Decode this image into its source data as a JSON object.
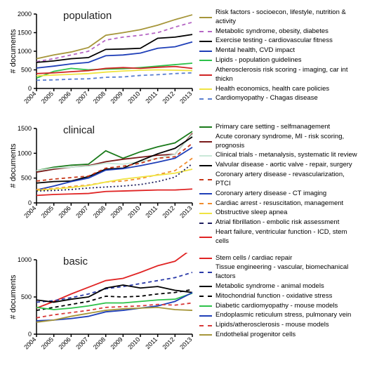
{
  "years": [
    "2004",
    "2005",
    "2006",
    "2007",
    "2008",
    "2009",
    "2010",
    "2011",
    "2012",
    "2013"
  ],
  "axis": {
    "ylabel": "# documents",
    "label_fontsize": 11,
    "tick_fontsize": 9,
    "grid_color": "#cccccc",
    "axis_color": "#000000",
    "background_color": "#ffffff"
  },
  "panels": [
    {
      "title": "population",
      "ylim": [
        0,
        2000
      ],
      "ytick_step": 500,
      "yticks": [
        0,
        500,
        1000,
        1500,
        2000
      ],
      "height": 150,
      "series": [
        {
          "label": "Risk factors - socioecon, lifestyle, nutrition & activity",
          "color": "#a6963a",
          "dash": "",
          "values": [
            800,
            900,
            980,
            1100,
            1430,
            1500,
            1580,
            1700,
            1850,
            1980
          ]
        },
        {
          "label": "Metabolic syndrome, obesity, diabetes",
          "color": "#b566c4",
          "dash": "5,4",
          "values": [
            720,
            800,
            900,
            1000,
            1300,
            1380,
            1430,
            1500,
            1650,
            1780
          ]
        },
        {
          "label": "Exercise testing - cardiovascular fitness",
          "color": "#000000",
          "dash": "",
          "values": [
            700,
            740,
            800,
            830,
            1050,
            1060,
            1080,
            1350,
            1380,
            1450
          ]
        },
        {
          "label": "Mental health, CVD impact",
          "color": "#1f3fb8",
          "dash": "",
          "values": [
            550,
            600,
            660,
            700,
            880,
            900,
            950,
            1080,
            1120,
            1250
          ]
        },
        {
          "label": "Lipids - population guidelines",
          "color": "#2dc24a",
          "dash": "",
          "values": [
            280,
            460,
            540,
            500,
            520,
            530,
            560,
            600,
            640,
            680
          ]
        },
        {
          "label": "Atherosclerosis risk scoring - imaging, car int thickn",
          "color": "#d02424",
          "dash": "",
          "values": [
            400,
            420,
            450,
            480,
            540,
            560,
            540,
            570,
            590,
            540
          ]
        },
        {
          "label": "Health economics, health care policies",
          "color": "#f0e442",
          "dash": "",
          "values": [
            340,
            360,
            380,
            400,
            440,
            470,
            490,
            500,
            490,
            480
          ]
        },
        {
          "label": "Cardiomyopathy - Chagas disease",
          "color": "#5a7fd0",
          "dash": "5,4",
          "values": [
            220,
            230,
            250,
            260,
            300,
            310,
            350,
            370,
            400,
            420
          ]
        }
      ]
    },
    {
      "title": "clinical",
      "ylim": [
        0,
        1500
      ],
      "ytick_step": 500,
      "yticks": [
        0,
        500,
        1000,
        1500
      ],
      "height": 150,
      "series": [
        {
          "label": "Primary care setting - selfmanagement",
          "color": "#1a7a1a",
          "dash": "",
          "values": [
            650,
            720,
            760,
            780,
            1050,
            900,
            1030,
            1130,
            1210,
            1440
          ]
        },
        {
          "label": "Acute coronary syndrome, MI - risk scoring, prognosis",
          "color": "#7a1a1a",
          "dash": "",
          "values": [
            620,
            680,
            720,
            750,
            830,
            880,
            920,
            960,
            980,
            1400
          ]
        },
        {
          "label": "Clinical trials - metanalysis, systematic lit review",
          "color": "#c9e8d8",
          "dash": "",
          "values": [
            650,
            700,
            720,
            740,
            800,
            780,
            830,
            900,
            980,
            1380
          ]
        },
        {
          "label": "Valvular disease - aortic valve - repair, surgery",
          "color": "#000000",
          "dash": "",
          "values": [
            400,
            430,
            440,
            530,
            680,
            700,
            850,
            990,
            1100,
            1330
          ]
        },
        {
          "label": "Coronary artery disease - revascularization, PTCI",
          "color": "#c8381a",
          "dash": "5,4",
          "values": [
            440,
            480,
            510,
            540,
            700,
            740,
            800,
            900,
            930,
            1200
          ]
        },
        {
          "label": "Coronary artery disease - CT imaging",
          "color": "#1f3fb8",
          "dash": "",
          "values": [
            260,
            340,
            430,
            500,
            660,
            690,
            750,
            820,
            900,
            1120
          ]
        },
        {
          "label": "Cardiac arrest - resuscitation, management",
          "color": "#f08c2e",
          "dash": "5,4",
          "values": [
            270,
            290,
            330,
            360,
            420,
            440,
            490,
            570,
            650,
            900
          ]
        },
        {
          "label": "Obstructive sleep apnea",
          "color": "#f0e442",
          "dash": "",
          "values": [
            250,
            280,
            310,
            350,
            420,
            480,
            520,
            560,
            600,
            680
          ]
        },
        {
          "label": "Atrial fibrillation - embolic risk assessment",
          "color": "#202060",
          "dash": "2,3",
          "values": [
            240,
            250,
            270,
            300,
            320,
            340,
            370,
            430,
            520,
            790
          ]
        },
        {
          "label": "Heart failure, ventricular function - ICD, stem cells",
          "color": "#e02424",
          "dash": "",
          "values": [
            150,
            170,
            180,
            190,
            230,
            240,
            250,
            260,
            260,
            280
          ]
        }
      ]
    },
    {
      "title": "basic",
      "ylim": [
        0,
        1000
      ],
      "ytick_step": 500,
      "yticks": [
        0,
        500,
        1000
      ],
      "height": 150,
      "series": [
        {
          "label": "Stem cells / cardiac repair",
          "color": "#e02424",
          "dash": "",
          "values": [
            350,
            440,
            540,
            630,
            720,
            750,
            830,
            920,
            980,
            1150
          ]
        },
        {
          "label": "Tissue engineering - vascular, biomechanical factors",
          "color": "#2a3aa8",
          "dash": "5,4",
          "values": [
            430,
            450,
            490,
            540,
            610,
            640,
            680,
            720,
            760,
            830
          ]
        },
        {
          "label": "Metabolic syndrome - animal models",
          "color": "#000000",
          "dash": "",
          "values": [
            460,
            430,
            470,
            500,
            620,
            660,
            620,
            640,
            590,
            560
          ]
        },
        {
          "label": "Mitochondrial function - oxidative stress",
          "color": "#000000",
          "dash": "5,4",
          "values": [
            320,
            360,
            400,
            440,
            510,
            500,
            510,
            540,
            560,
            600
          ]
        },
        {
          "label": "Diabetic cardiomyopathy - mouse models",
          "color": "#2dc24a",
          "dash": "",
          "values": [
            360,
            330,
            350,
            380,
            420,
            420,
            440,
            460,
            470,
            550
          ]
        },
        {
          "label": "Endoplasmic reticulum stress, pulmonary vein",
          "color": "#1f3fb8",
          "dash": "",
          "values": [
            180,
            190,
            210,
            240,
            300,
            320,
            350,
            380,
            440,
            560
          ]
        },
        {
          "label": "Lipids/atherosclerosis - mouse models",
          "color": "#d83a3a",
          "dash": "5,4",
          "values": [
            220,
            260,
            290,
            320,
            360,
            370,
            380,
            400,
            390,
            420
          ]
        },
        {
          "label": "Endothelial progenitor cells",
          "color": "#a6963a",
          "dash": "",
          "values": [
            160,
            190,
            240,
            280,
            320,
            340,
            350,
            360,
            330,
            320
          ]
        }
      ]
    }
  ]
}
